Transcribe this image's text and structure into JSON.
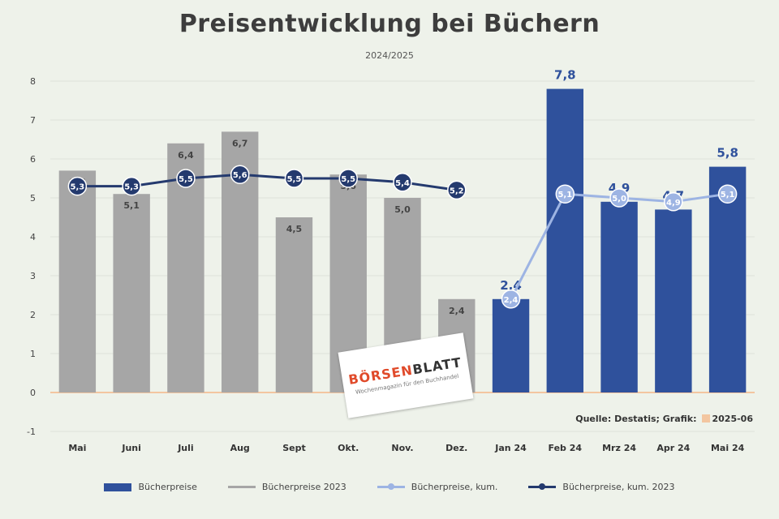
{
  "chart_data": {
    "type": "bar",
    "title": "Preisentwicklung bei Büchern",
    "subtitle": "2024/2025",
    "categories": [
      "Mai",
      "Juni",
      "Juli",
      "Aug",
      "Sept",
      "Okt.",
      "Nov.",
      "Dez.",
      "Jan 24",
      "Feb 24",
      "Mrz 24",
      "Apr 24",
      "Mai 24"
    ],
    "ylim": [
      -1,
      8
    ],
    "yticks": [
      -1,
      0,
      1,
      2,
      3,
      4,
      5,
      6,
      7,
      8
    ],
    "grid": true,
    "legend_position": "bottom",
    "series": [
      {
        "name": "Bücherpreise",
        "kind": "bar",
        "color": "#2f519c",
        "values": [
          null,
          null,
          null,
          null,
          null,
          null,
          null,
          null,
          2.4,
          7.8,
          4.9,
          4.7,
          5.8
        ],
        "labels": [
          "",
          "",
          "",
          "",
          "",
          "",
          "",
          "",
          "2,4",
          "7,8",
          "4,9",
          "4,7",
          "5,8"
        ]
      },
      {
        "name": "Bücherpreise 2023",
        "kind": "bar",
        "color": "#a6a6a6",
        "values": [
          5.7,
          5.1,
          6.4,
          6.7,
          4.5,
          5.6,
          5.0,
          2.4,
          null,
          null,
          null,
          null,
          null
        ],
        "labels": [
          "5,7",
          "5,1",
          "6,4",
          "6,7",
          "4,5",
          "5,6",
          "5,0",
          "2,4",
          "",
          "",
          "",
          "",
          ""
        ]
      },
      {
        "name": "Bücherpreise, kum.",
        "kind": "line",
        "color": "#9db4e3",
        "values": [
          null,
          null,
          null,
          null,
          null,
          null,
          null,
          null,
          2.4,
          5.1,
          5.0,
          4.9,
          5.1
        ],
        "labels": [
          "",
          "",
          "",
          "",
          "",
          "",
          "",
          "",
          "2,4",
          "5,1",
          "5,0",
          "4,9",
          "5,1"
        ]
      },
      {
        "name": "Bücherpreise, kum. 2023",
        "kind": "line",
        "color": "#243a6e",
        "values": [
          5.3,
          5.3,
          5.5,
          5.6,
          5.5,
          5.5,
          5.4,
          5.2,
          null,
          null,
          null,
          null,
          null
        ],
        "labels": [
          "5,3",
          "5,3",
          "5,5",
          "5,6",
          "5,5",
          "5,5",
          "5,4",
          "5,2",
          "",
          "",
          "",
          "",
          ""
        ]
      }
    ],
    "source": "Quelle: Destatis; Grafik:",
    "source_suffix": "2025-06"
  },
  "stamp": {
    "logo_a": "BÖRSEN",
    "logo_b": "BLATT",
    "tag": "Wochenmagazin für den Buchhandel"
  }
}
